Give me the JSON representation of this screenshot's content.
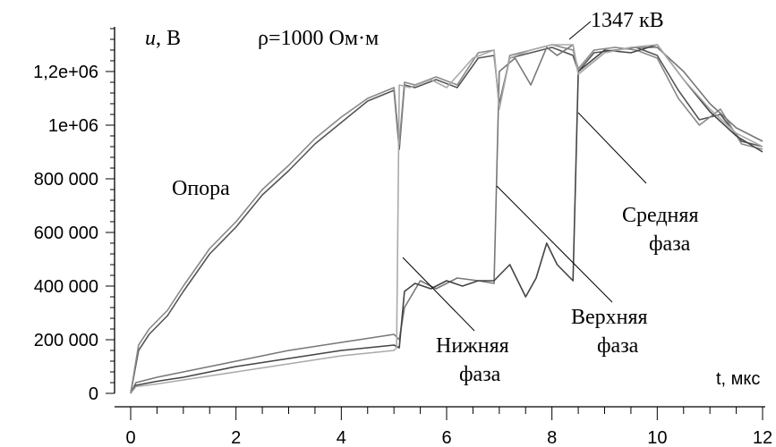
{
  "chart_data": {
    "type": "line",
    "title": "ρ=1000 Ом·м",
    "ylabel_var": "u",
    "ylabel_unit": ", В",
    "xlabel": "t, мкс",
    "xlim": [
      0,
      12
    ],
    "ylim": [
      0,
      1400000
    ],
    "x_ticks": [
      "0",
      "2",
      "4",
      "6",
      "8",
      "10",
      "12"
    ],
    "y_ticks": [
      "0",
      "200 000",
      "400 000",
      "600 000",
      "800 000",
      "1e+06",
      "1,2e+06"
    ],
    "annotations": {
      "peak": "1347 кВ",
      "pole": "Опора",
      "lower_1": "Нижняя",
      "lower_2": "фаза",
      "upper_1": "Верхняя",
      "upper_2": "фаза",
      "middle_1": "Средняя",
      "middle_2": "фаза"
    },
    "series": [
      {
        "color": "#555555",
        "x": [
          0,
          0.15,
          0.35,
          0.7,
          1,
          1.5,
          2,
          2.5,
          3,
          3.5,
          4,
          4.5,
          5,
          5.1,
          5.2,
          5.4,
          5.8,
          6.2,
          6.6,
          6.9,
          7.0,
          7.2,
          7.6,
          8,
          8.4,
          8.5,
          8.8,
          9.2,
          9.6,
          10,
          10.4,
          10.8,
          11.2,
          11.6,
          12
        ],
        "y": [
          0,
          160000,
          220000,
          290000,
          380000,
          520000,
          620000,
          740000,
          830000,
          930000,
          1010000,
          1090000,
          1130000,
          910000,
          1150000,
          1140000,
          1170000,
          1140000,
          1250000,
          1260000,
          1080000,
          1250000,
          1270000,
          1290000,
          1260000,
          1200000,
          1270000,
          1280000,
          1290000,
          1260000,
          1130000,
          1020000,
          1040000,
          940000,
          920000
        ]
      },
      {
        "color": "#888888",
        "x": [
          0,
          0.15,
          0.35,
          0.7,
          1,
          1.5,
          2,
          2.5,
          3,
          3.5,
          4,
          4.5,
          5,
          5.1,
          5.2,
          5.4,
          5.8,
          6.2,
          6.6,
          6.9,
          7.0,
          7.2,
          7.6,
          8,
          8.4,
          8.5,
          8.8,
          9.2,
          9.6,
          10,
          10.4,
          10.8,
          11.2,
          11.6,
          12
        ],
        "y": [
          0,
          180000,
          240000,
          310000,
          400000,
          540000,
          640000,
          760000,
          850000,
          950000,
          1030000,
          1100000,
          1140000,
          930000,
          1160000,
          1150000,
          1180000,
          1150000,
          1270000,
          1280000,
          1060000,
          1260000,
          1280000,
          1300000,
          1280000,
          1210000,
          1280000,
          1290000,
          1280000,
          1250000,
          1100000,
          1000000,
          1060000,
          930000,
          910000
        ]
      },
      {
        "color": "#777777",
        "x": [
          0,
          0.1,
          0.5,
          1,
          1.5,
          2,
          2.5,
          3,
          3.5,
          4,
          4.5,
          5,
          5.1,
          5.2,
          5.5,
          5.8,
          6.2,
          6.6,
          6.9,
          7.0,
          7.3,
          7.6,
          7.9,
          8.1,
          8.4,
          8.5,
          9,
          9.5,
          10,
          10.5,
          11,
          11.5,
          12
        ],
        "y": [
          0,
          40000,
          60000,
          80000,
          100000,
          120000,
          140000,
          160000,
          175000,
          190000,
          205000,
          220000,
          200000,
          320000,
          420000,
          390000,
          430000,
          420000,
          410000,
          1200000,
          1250000,
          1150000,
          1290000,
          1260000,
          1300000,
          1190000,
          1270000,
          1290000,
          1290000,
          1200000,
          1080000,
          990000,
          940000
        ]
      },
      {
        "color": "#444444",
        "x": [
          0,
          0.1,
          0.5,
          1,
          1.5,
          2,
          2.5,
          3,
          3.5,
          4,
          4.5,
          5,
          5.1,
          5.2,
          5.4,
          5.7,
          6,
          6.3,
          6.6,
          6.9,
          7.0,
          7.2,
          7.5,
          7.7,
          7.9,
          8.1,
          8.4,
          8.5,
          9,
          9.5,
          10,
          10.5,
          11,
          11.5,
          12
        ],
        "y": [
          0,
          30000,
          45000,
          60000,
          80000,
          100000,
          115000,
          130000,
          145000,
          160000,
          170000,
          180000,
          170000,
          380000,
          410000,
          390000,
          420000,
          400000,
          420000,
          420000,
          440000,
          480000,
          360000,
          430000,
          560000,
          480000,
          420000,
          1200000,
          1280000,
          1270000,
          1300000,
          1170000,
          1050000,
          960000,
          900000
        ]
      },
      {
        "color": "#aaaaaa",
        "x": [
          0,
          0.1,
          0.5,
          1,
          1.5,
          2,
          2.5,
          3,
          3.5,
          4,
          4.5,
          5,
          5.05,
          5.1,
          5.3,
          5.7,
          6,
          6.5,
          6.9,
          7.0,
          7.2,
          7.6,
          8,
          8.4,
          8.5,
          9,
          9.5,
          10,
          10.5,
          11,
          11.5,
          12
        ],
        "y": [
          0,
          25000,
          35000,
          50000,
          65000,
          80000,
          95000,
          110000,
          125000,
          140000,
          150000,
          160000,
          170000,
          1150000,
          1140000,
          1170000,
          1140000,
          1250000,
          1280000,
          1060000,
          1250000,
          1280000,
          1300000,
          1300000,
          1190000,
          1270000,
          1290000,
          1300000,
          1170000,
          1060000,
          970000,
          920000
        ]
      }
    ]
  }
}
